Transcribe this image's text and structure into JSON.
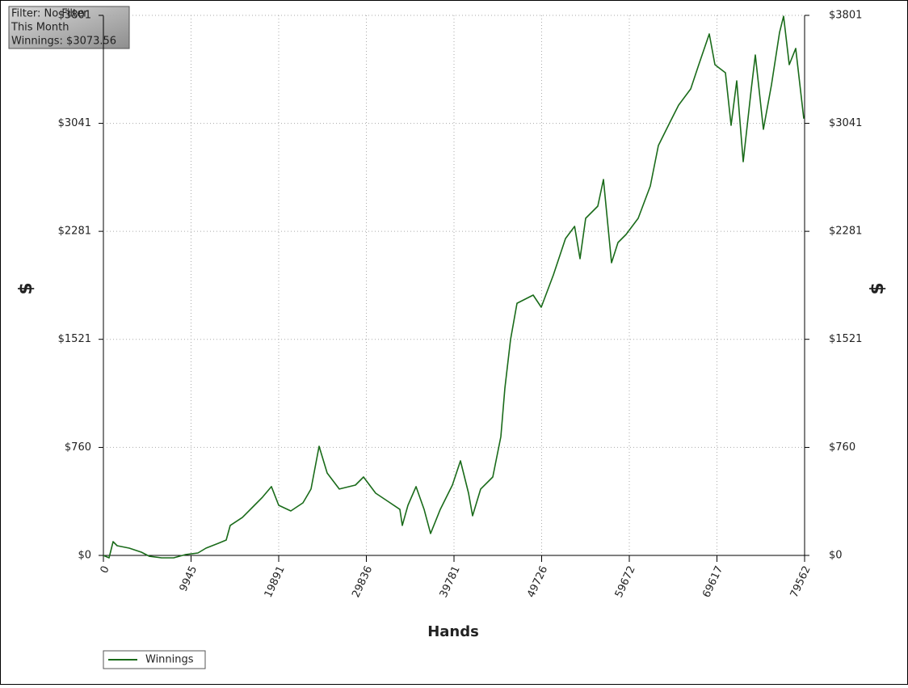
{
  "chart_data": {
    "type": "line",
    "annotations": [
      "Filter: No Filter",
      "This Month",
      "Winnings: $3073.56"
    ],
    "x_label": "Hands",
    "y_label": "$",
    "y2_label": "$",
    "x": [
      0,
      642,
      1100,
      1558,
      2933,
      4308,
      5224,
      6599,
      7974,
      9349,
      10724,
      11641,
      13016,
      13932,
      14391,
      15766,
      17141,
      18057,
      19066,
      19891,
      21266,
      22641,
      23557,
      24473,
      25390,
      26765,
      28598,
      29515,
      30889,
      32264,
      33639,
      33914,
      34556,
      35472,
      36389,
      37122,
      38222,
      39597,
      40514,
      41430,
      41889,
      42805,
      44180,
      45097,
      45555,
      46197,
      46930,
      48763,
      49680,
      51055,
      52430,
      53464,
      54080,
      54722,
      56097,
      56738,
      57655,
      58388,
      59305,
      60680,
      62055,
      62971,
      64346,
      65263,
      66638,
      67554,
      68746,
      69387,
      70578,
      71220,
      71862,
      72595,
      73512,
      73970,
      74887,
      75804,
      76720,
      77178,
      77820,
      78554,
      79470
    ],
    "series": [
      {
        "name": "Winnings",
        "color": "#1a6b1a",
        "values": [
          0,
          -17,
          97,
          68,
          51,
          23,
          -6,
          -17,
          -17,
          6,
          17,
          51,
          85,
          108,
          211,
          267,
          353,
          410,
          484,
          353,
          313,
          370,
          467,
          768,
          580,
          467,
          495,
          552,
          438,
          381,
          324,
          211,
          353,
          484,
          324,
          154,
          324,
          495,
          666,
          438,
          279,
          467,
          552,
          836,
          1178,
          1519,
          1775,
          1832,
          1747,
          1974,
          2230,
          2316,
          2088,
          2373,
          2458,
          2646,
          2060,
          2202,
          2259,
          2373,
          2600,
          2885,
          3056,
          3169,
          3283,
          3454,
          3670,
          3454,
          3397,
          3027,
          3340,
          2771,
          3283,
          3522,
          2999,
          3312,
          3681,
          3795,
          3454,
          3568,
          3074
        ]
      }
    ],
    "xlim": [
      0,
      79562
    ],
    "xticks": [
      0,
      9945,
      19891,
      29836,
      39781,
      49726,
      59672,
      69617,
      79562
    ],
    "ylim": [
      0,
      3801
    ],
    "yticks": [
      {
        "value": 0,
        "label": "$0"
      },
      {
        "value": 760,
        "label": "$760"
      },
      {
        "value": 1521,
        "label": "$1521"
      },
      {
        "value": 2281,
        "label": "$2281"
      },
      {
        "value": 3041,
        "label": "$3041"
      },
      {
        "value": 3801,
        "label": "$3801"
      }
    ],
    "grid": true,
    "legend": "bottom-left"
  }
}
